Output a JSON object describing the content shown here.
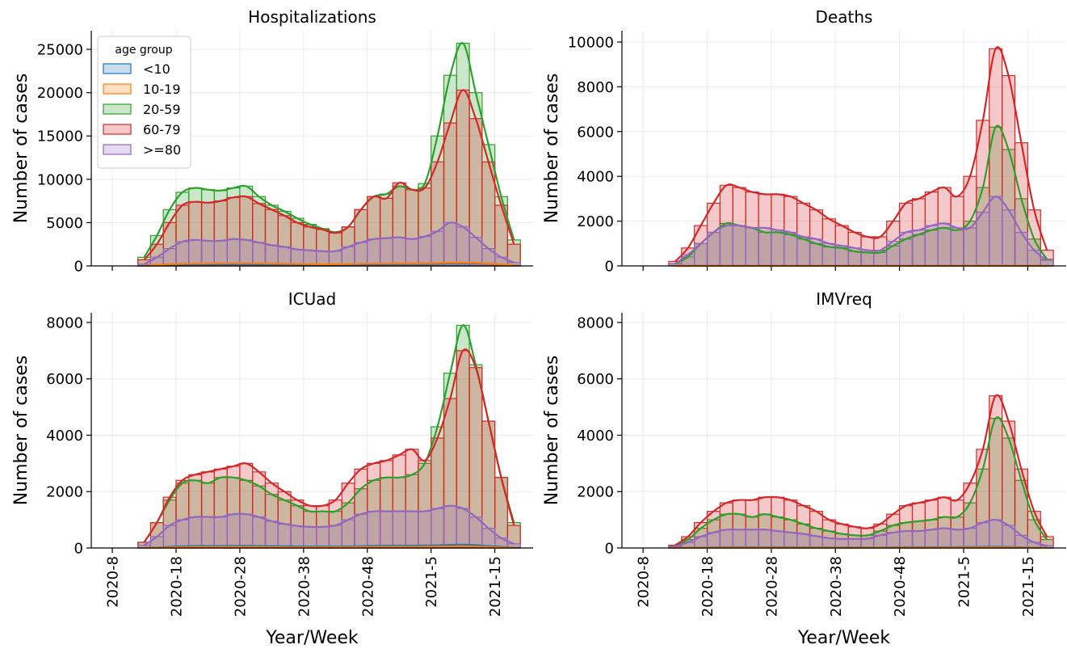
{
  "chart_data": [
    {
      "type": "histogram",
      "title": "Hospitalizations",
      "ylabel": "Number of cases",
      "legend": "upper left",
      "legend_title": "age group",
      "grid": true,
      "xlim": [
        -3.3,
        66
      ],
      "xticks": [
        0,
        10,
        20,
        30,
        40,
        50,
        60
      ],
      "ylim": [
        0,
        27150
      ],
      "yticks": [
        0,
        5000,
        10000,
        15000,
        20000,
        25000
      ],
      "bins": [
        4,
        6,
        8,
        10,
        12,
        14,
        16,
        18,
        20,
        22,
        24,
        26,
        28,
        30,
        32,
        34,
        36,
        38,
        40,
        42,
        44,
        46,
        48,
        50,
        52,
        54,
        56,
        58,
        60,
        62,
        64
      ],
      "series": [
        {
          "name": "<10",
          "color": "#1f77b4",
          "values": [
            20,
            60,
            100,
            150,
            180,
            190,
            200,
            200,
            210,
            200,
            190,
            180,
            170,
            160,
            150,
            150,
            160,
            180,
            200,
            210,
            220,
            220,
            230,
            260,
            300,
            330,
            300,
            240,
            150,
            60
          ]
        },
        {
          "name": "10-19",
          "color": "#ff7f0e",
          "values": [
            40,
            120,
            200,
            260,
            280,
            290,
            300,
            310,
            320,
            300,
            280,
            260,
            240,
            220,
            200,
            200,
            220,
            250,
            280,
            290,
            300,
            300,
            310,
            340,
            380,
            400,
            360,
            280,
            170,
            70
          ]
        },
        {
          "name": "20-59",
          "color": "#2ca02c",
          "values": [
            1000,
            3500,
            6500,
            8500,
            9000,
            8800,
            8700,
            9000,
            9200,
            8000,
            7000,
            6300,
            5500,
            4800,
            4300,
            3900,
            4500,
            6500,
            8000,
            8300,
            9200,
            8800,
            9500,
            15000,
            22000,
            25700,
            20000,
            14000,
            8000,
            3000
          ]
        },
        {
          "name": "60-79",
          "color": "#d62728",
          "values": [
            700,
            2500,
            5000,
            7000,
            7400,
            7300,
            7500,
            7900,
            8000,
            7200,
            6500,
            5800,
            5000,
            4500,
            4200,
            3800,
            4500,
            6500,
            8000,
            7800,
            9600,
            8800,
            9000,
            12000,
            16500,
            20300,
            17000,
            12000,
            7000,
            2500
          ]
        },
        {
          "name": ">=80",
          "color": "#9467bd",
          "values": [
            200,
            1000,
            2000,
            2800,
            3000,
            2900,
            2900,
            3100,
            3000,
            2700,
            2400,
            2200,
            1900,
            1800,
            1700,
            1700,
            2200,
            2700,
            3100,
            3200,
            3300,
            3100,
            3400,
            4000,
            5000,
            4500,
            3300,
            2000,
            1000,
            400
          ]
        }
      ]
    },
    {
      "type": "histogram",
      "title": "Deaths",
      "ylabel": "Number of cases",
      "grid": true,
      "xlim": [
        -3.3,
        66
      ],
      "xticks": [
        0,
        10,
        20,
        30,
        40,
        50,
        60
      ],
      "ylim": [
        0,
        10505
      ],
      "yticks": [
        0,
        2000,
        4000,
        6000,
        8000,
        10000
      ],
      "bins": [
        4,
        6,
        8,
        10,
        12,
        14,
        16,
        18,
        20,
        22,
        24,
        26,
        28,
        30,
        32,
        34,
        36,
        38,
        40,
        42,
        44,
        46,
        48,
        50,
        52,
        54,
        56,
        58,
        60,
        62,
        64
      ],
      "series": [
        {
          "color": "#1f77b4",
          "values": [
            0,
            0,
            1,
            1,
            1,
            1,
            1,
            1,
            1,
            1,
            1,
            1,
            1,
            1,
            1,
            1,
            1,
            1,
            1,
            1,
            1,
            1,
            1,
            1,
            1,
            1,
            1,
            1,
            0,
            0
          ]
        },
        {
          "color": "#ff7f0e",
          "values": [
            0,
            1,
            2,
            3,
            3,
            3,
            3,
            3,
            3,
            3,
            2,
            2,
            2,
            2,
            2,
            2,
            2,
            3,
            3,
            3,
            3,
            3,
            3,
            4,
            5,
            5,
            4,
            3,
            2,
            1
          ]
        },
        {
          "color": "#2ca02c",
          "values": [
            100,
            400,
            1000,
            1500,
            1900,
            1800,
            1700,
            1500,
            1500,
            1400,
            1200,
            1000,
            850,
            800,
            650,
            600,
            600,
            900,
            1200,
            1400,
            1600,
            1700,
            1600,
            2000,
            3500,
            6200,
            5200,
            3000,
            1200,
            300
          ]
        },
        {
          "color": "#d62728",
          "values": [
            200,
            800,
            1800,
            2800,
            3600,
            3500,
            3300,
            3200,
            3200,
            3100,
            2800,
            2500,
            2100,
            1800,
            1500,
            1300,
            1300,
            2000,
            2800,
            3000,
            3300,
            3500,
            3100,
            4000,
            6500,
            9700,
            8500,
            5500,
            2500,
            700
          ]
        },
        {
          "color": "#9467bd",
          "values": [
            100,
            500,
            1000,
            1500,
            1800,
            1800,
            1700,
            1700,
            1600,
            1500,
            1300,
            1200,
            1000,
            900,
            800,
            700,
            700,
            1100,
            1500,
            1600,
            1800,
            1900,
            1700,
            1700,
            2400,
            3100,
            2500,
            1500,
            700,
            250
          ]
        }
      ]
    },
    {
      "type": "histogram",
      "title": "ICUad",
      "ylabel": "Number of cases",
      "xlabel": "Year/Week",
      "grid": true,
      "xlim": [
        -3.3,
        66
      ],
      "xticks": [
        {
          "value": 0,
          "label": "2020-8"
        },
        {
          "value": 10,
          "label": "2020-18"
        },
        {
          "value": 20,
          "label": "2020-28"
        },
        {
          "value": 30,
          "label": "2020-38"
        },
        {
          "value": 40,
          "label": "2020-48"
        },
        {
          "value": 50,
          "label": "2021-5"
        },
        {
          "value": 60,
          "label": "2021-15"
        }
      ],
      "ylim": [
        0,
        8344
      ],
      "yticks": [
        0,
        2000,
        4000,
        6000,
        8000
      ],
      "bins": [
        4,
        6,
        8,
        10,
        12,
        14,
        16,
        18,
        20,
        22,
        24,
        26,
        28,
        30,
        32,
        34,
        36,
        38,
        40,
        42,
        44,
        46,
        48,
        50,
        52,
        54,
        56,
        58,
        60,
        62,
        64
      ],
      "series": [
        {
          "color": "#1f77b4",
          "values": [
            5,
            20,
            40,
            60,
            70,
            70,
            70,
            75,
            75,
            70,
            65,
            60,
            55,
            50,
            50,
            50,
            55,
            65,
            75,
            80,
            80,
            80,
            85,
            95,
            110,
            120,
            100,
            70,
            40,
            15
          ]
        },
        {
          "color": "#ff7f0e",
          "values": [
            3,
            10,
            20,
            30,
            35,
            35,
            35,
            40,
            40,
            35,
            30,
            30,
            25,
            25,
            25,
            25,
            30,
            35,
            40,
            40,
            40,
            40,
            45,
            50,
            55,
            60,
            50,
            35,
            20,
            8
          ]
        },
        {
          "color": "#2ca02c",
          "values": [
            200,
            900,
            1700,
            2300,
            2400,
            2300,
            2500,
            2500,
            2400,
            2200,
            1900,
            1700,
            1500,
            1300,
            1300,
            1300,
            1600,
            2100,
            2400,
            2500,
            2500,
            2600,
            3000,
            4300,
            6200,
            7900,
            6500,
            4500,
            2500,
            900
          ]
        },
        {
          "color": "#d62728",
          "values": [
            200,
            900,
            1800,
            2400,
            2600,
            2700,
            2800,
            2900,
            3000,
            2700,
            2300,
            2000,
            1700,
            1500,
            1500,
            1700,
            2300,
            2800,
            3000,
            3100,
            3300,
            3500,
            3100,
            3900,
            5300,
            7000,
            6400,
            4500,
            2500,
            800
          ]
        },
        {
          "color": "#9467bd",
          "values": [
            100,
            400,
            800,
            1000,
            1100,
            1100,
            1100,
            1200,
            1200,
            1100,
            950,
            850,
            780,
            750,
            750,
            800,
            1000,
            1200,
            1300,
            1300,
            1300,
            1300,
            1300,
            1400,
            1500,
            1400,
            1100,
            700,
            350,
            150
          ]
        }
      ]
    },
    {
      "type": "histogram",
      "title": "IMVreq",
      "ylabel": "Number of cases",
      "xlabel": "Year/Week",
      "grid": true,
      "xlim": [
        -3.3,
        66
      ],
      "xticks": [
        {
          "value": 0,
          "label": "2020-8"
        },
        {
          "value": 10,
          "label": "2020-18"
        },
        {
          "value": 20,
          "label": "2020-28"
        },
        {
          "value": 30,
          "label": "2020-38"
        },
        {
          "value": 40,
          "label": "2020-48"
        },
        {
          "value": 50,
          "label": "2021-5"
        },
        {
          "value": 60,
          "label": "2021-15"
        }
      ],
      "ylim": [
        0,
        8344
      ],
      "yticks": [
        0,
        2000,
        4000,
        6000,
        8000
      ],
      "bins": [
        4,
        6,
        8,
        10,
        12,
        14,
        16,
        18,
        20,
        22,
        24,
        26,
        28,
        30,
        32,
        34,
        36,
        38,
        40,
        42,
        44,
        46,
        48,
        50,
        52,
        54,
        56,
        58,
        60,
        62,
        64
      ],
      "series": [
        {
          "color": "#1f77b4",
          "values": [
            2,
            8,
            15,
            25,
            30,
            30,
            30,
            30,
            30,
            28,
            25,
            22,
            20,
            18,
            18,
            18,
            20,
            25,
            30,
            30,
            30,
            30,
            32,
            35,
            40,
            45,
            38,
            25,
            12,
            5
          ]
        },
        {
          "color": "#ff7f0e",
          "values": [
            1,
            4,
            8,
            12,
            14,
            14,
            14,
            15,
            15,
            14,
            12,
            11,
            10,
            9,
            9,
            9,
            10,
            12,
            14,
            15,
            15,
            15,
            16,
            18,
            20,
            22,
            18,
            12,
            6,
            2
          ]
        },
        {
          "color": "#2ca02c",
          "values": [
            80,
            300,
            700,
            1000,
            1200,
            1200,
            1100,
            1200,
            1100,
            1000,
            850,
            700,
            600,
            500,
            450,
            450,
            600,
            800,
            900,
            950,
            1000,
            1100,
            1100,
            1600,
            2800,
            4600,
            3900,
            2400,
            1000,
            300
          ]
        },
        {
          "color": "#d62728",
          "values": [
            100,
            400,
            900,
            1300,
            1600,
            1700,
            1700,
            1800,
            1800,
            1700,
            1500,
            1300,
            1000,
            850,
            750,
            700,
            850,
            1200,
            1500,
            1600,
            1700,
            1800,
            1700,
            2300,
            3500,
            5400,
            4500,
            2800,
            1300,
            400
          ]
        },
        {
          "color": "#9467bd",
          "values": [
            50,
            200,
            400,
            550,
            650,
            650,
            650,
            650,
            600,
            550,
            500,
            420,
            350,
            320,
            320,
            330,
            450,
            550,
            600,
            600,
            650,
            700,
            650,
            700,
            900,
            1000,
            800,
            450,
            200,
            80
          ]
        }
      ]
    }
  ]
}
